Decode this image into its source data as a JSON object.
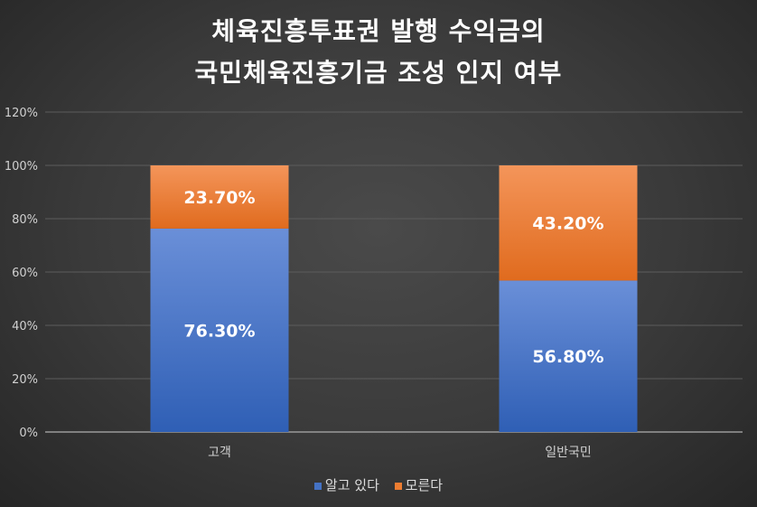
{
  "chart_data": {
    "type": "bar",
    "stacked": true,
    "title_lines": [
      "체육진흥투표권 발행 수익금의",
      "국민체육진흥기금 조성 인지 여부"
    ],
    "categories": [
      "고객",
      "일반국민"
    ],
    "series": [
      {
        "name": "알고 있다",
        "values": [
          76.3,
          56.8
        ],
        "labels": [
          "76.30%",
          "56.80%"
        ],
        "color": "#4472c4"
      },
      {
        "name": "모른다",
        "values": [
          23.7,
          43.2
        ],
        "labels": [
          "23.70%",
          "43.20%"
        ],
        "color": "#ed7d31"
      }
    ],
    "ylim": [
      0,
      120
    ],
    "yticks": [
      0,
      20,
      40,
      60,
      80,
      100,
      120
    ],
    "ytick_labels": [
      "0%",
      "20%",
      "40%",
      "60%",
      "80%",
      "100%",
      "120%"
    ],
    "grid": true,
    "legend_position": "bottom"
  }
}
